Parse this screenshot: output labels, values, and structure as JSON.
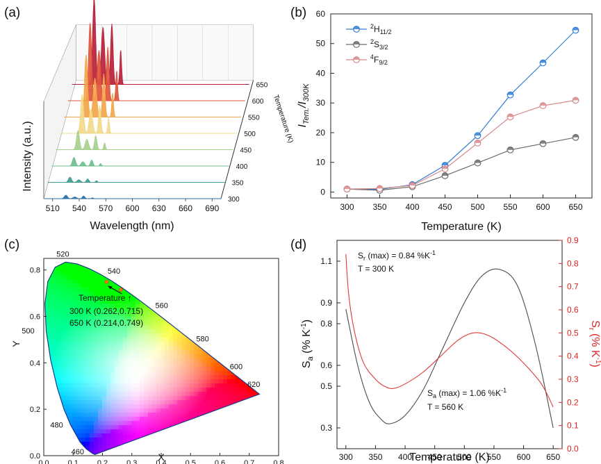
{
  "panels": {
    "a": {
      "label": "(a)"
    },
    "b": {
      "label": "(b)"
    },
    "c": {
      "label": "(c)"
    },
    "d": {
      "label": "(d)"
    }
  },
  "chart_data": [
    {
      "id": "a",
      "type": "area",
      "subtype": "3d-waterfall",
      "xlabel": "Wavelength (nm)",
      "ylabel": "Intensity (a.u.)",
      "zlabel": "Temperature (K)",
      "x_ticks": [
        "510",
        "540",
        "570",
        "600",
        "630",
        "660",
        "690"
      ],
      "z_ticks": [
        "300",
        "350",
        "400",
        "450",
        "500",
        "550",
        "600",
        "650"
      ],
      "xlim": [
        500,
        700
      ],
      "peaks_nm": [
        525,
        535,
        545,
        555
      ],
      "series": [
        {
          "name": "300",
          "color": "#2a6ea6",
          "peak_heights": [
            0.04,
            0.02,
            0.03,
            0.01
          ]
        },
        {
          "name": "350",
          "color": "#3d9c8f",
          "peak_heights": [
            0.06,
            0.03,
            0.04,
            0.02
          ]
        },
        {
          "name": "400",
          "color": "#6fbf8f",
          "peak_heights": [
            0.1,
            0.05,
            0.07,
            0.03
          ]
        },
        {
          "name": "450",
          "color": "#a8d08c",
          "peak_heights": [
            0.22,
            0.12,
            0.16,
            0.08
          ]
        },
        {
          "name": "500",
          "color": "#f2d98b",
          "peak_heights": [
            0.45,
            0.28,
            0.32,
            0.18
          ]
        },
        {
          "name": "550",
          "color": "#f3a54b",
          "peak_heights": [
            0.72,
            0.45,
            0.5,
            0.28
          ]
        },
        {
          "name": "600",
          "color": "#e0563a",
          "peak_heights": [
            0.9,
            0.58,
            0.62,
            0.35
          ]
        },
        {
          "name": "650",
          "color": "#b8203a",
          "peak_heights": [
            1.0,
            0.66,
            0.7,
            0.4
          ]
        }
      ]
    },
    {
      "id": "b",
      "type": "line",
      "xlabel": "Temperature (K)",
      "ylabel_main": "I",
      "ylabel_sub1": "Tem.",
      "ylabel_mid": "/I",
      "ylabel_sub2": "300K",
      "xlim": [
        275,
        675
      ],
      "ylim": [
        -2,
        60
      ],
      "x_ticks": [
        300,
        350,
        400,
        450,
        500,
        550,
        600,
        650
      ],
      "y_ticks": [
        0,
        10,
        20,
        30,
        40,
        50,
        60
      ],
      "x": [
        300,
        350,
        400,
        450,
        500,
        550,
        600,
        650
      ],
      "series": [
        {
          "name": "H11/2",
          "sup": "2",
          "base": "H",
          "sub": "11/2",
          "color": "#2f7fd6",
          "values": [
            1.0,
            0.9,
            2.5,
            9.0,
            19.0,
            32.7,
            43.5,
            54.5
          ]
        },
        {
          "name": "S3/2",
          "sup": "2",
          "base": "S",
          "sub": "3/2",
          "color": "#6b6b6b",
          "values": [
            1.0,
            0.6,
            1.8,
            5.5,
            9.8,
            14.2,
            16.3,
            18.4
          ]
        },
        {
          "name": "F9/2",
          "sup": "4",
          "base": "F",
          "sub": "9/2",
          "color": "#d98a8a",
          "values": [
            1.0,
            1.2,
            2.2,
            7.8,
            16.5,
            25.3,
            29.1,
            30.9
          ]
        }
      ]
    },
    {
      "id": "c",
      "type": "scatter",
      "subtype": "cie-1931-chromaticity",
      "xlabel": "X",
      "ylabel": "Y",
      "xlim": [
        0.0,
        0.8
      ],
      "ylim": [
        0.0,
        0.85
      ],
      "x_ticks": [
        "0.0",
        "0.1",
        "0.2",
        "0.3",
        "0.4",
        "0.5",
        "0.6",
        "0.7",
        "0.8"
      ],
      "y_ticks": [
        "0.0",
        "0.2",
        "0.4",
        "0.6",
        "0.8"
      ],
      "locus": [
        [
          0.1741,
          0.005
        ],
        [
          0.1666,
          0.0089
        ],
        [
          0.144,
          0.0297
        ],
        [
          0.1241,
          0.0578
        ],
        [
          0.0913,
          0.1327
        ],
        [
          0.0687,
          0.2007
        ],
        [
          0.0454,
          0.295
        ],
        [
          0.0235,
          0.4127
        ],
        [
          0.0082,
          0.5384
        ],
        [
          0.0039,
          0.6548
        ],
        [
          0.0139,
          0.7502
        ],
        [
          0.0389,
          0.812
        ],
        [
          0.0743,
          0.8338
        ],
        [
          0.1142,
          0.8262
        ],
        [
          0.1547,
          0.8059
        ],
        [
          0.1929,
          0.7816
        ],
        [
          0.2296,
          0.7543
        ],
        [
          0.2658,
          0.7243
        ],
        [
          0.3016,
          0.6923
        ],
        [
          0.3373,
          0.6589
        ],
        [
          0.3731,
          0.6245
        ],
        [
          0.4087,
          0.5896
        ],
        [
          0.4441,
          0.5547
        ],
        [
          0.4788,
          0.5202
        ],
        [
          0.5125,
          0.4866
        ],
        [
          0.5448,
          0.4544
        ],
        [
          0.5752,
          0.4242
        ],
        [
          0.6029,
          0.3965
        ],
        [
          0.627,
          0.3725
        ],
        [
          0.6482,
          0.3514
        ],
        [
          0.6658,
          0.334
        ],
        [
          0.6915,
          0.3083
        ],
        [
          0.7347,
          0.2653
        ]
      ],
      "wavelength_labels": [
        {
          "text": "460",
          "x": 0.144,
          "y": 0.0297
        },
        {
          "text": "480",
          "x": 0.0913,
          "y": 0.1327
        },
        {
          "text": "500",
          "x": 0.0082,
          "y": 0.5384
        },
        {
          "text": "520",
          "x": 0.0743,
          "y": 0.8338
        },
        {
          "text": "540",
          "x": 0.2296,
          "y": 0.7543
        },
        {
          "text": "560",
          "x": 0.3731,
          "y": 0.6245
        },
        {
          "text": "580",
          "x": 0.5125,
          "y": 0.4866
        },
        {
          "text": "600",
          "x": 0.627,
          "y": 0.3725
        },
        {
          "text": "620",
          "x": 0.6915,
          "y": 0.3083
        }
      ],
      "points": [
        {
          "temperature": "300 K",
          "x": 0.262,
          "y": 0.715
        },
        {
          "temperature": "650 K",
          "x": 0.214,
          "y": 0.749
        }
      ],
      "annotation_title": "Temperature ↑",
      "annotation_line1": "300 K (0.262,0.715)",
      "annotation_line2": "650 K (0.214,0.749)"
    },
    {
      "id": "d",
      "type": "line",
      "xlabel": "Temperature (K)",
      "ylabel_left_main": "S",
      "ylabel_left_sub": "a",
      "ylabel_left_tail": " (% K",
      "ylabel_left_sup": "-1",
      "ylabel_left_end": ")",
      "ylabel_right_main": "S",
      "ylabel_right_sub": "r",
      "ylabel_right_tail": " (% K",
      "ylabel_right_sup": "-1",
      "ylabel_right_end": ")",
      "xlim": [
        285,
        665
      ],
      "x_ticks": [
        300,
        350,
        400,
        450,
        500,
        550,
        600,
        650
      ],
      "left_ylim": [
        0.2,
        1.2
      ],
      "left_ticks": [
        "0.3",
        "0.5",
        "0.6",
        "0.8",
        "0.9",
        "1.1"
      ],
      "left_tick_values": [
        0.3,
        0.5,
        0.6,
        0.8,
        0.9,
        1.1
      ],
      "right_ylim": [
        0.0,
        0.9
      ],
      "right_ticks": [
        "0.0",
        "0.1",
        "0.2",
        "0.3",
        "0.4",
        "0.5",
        "0.6",
        "0.7",
        "0.8",
        "0.9"
      ],
      "right_tick_values": [
        0.0,
        0.1,
        0.2,
        0.3,
        0.4,
        0.5,
        0.6,
        0.7,
        0.8,
        0.9
      ],
      "series": [
        {
          "name": "Sa",
          "axis": "left",
          "color": "#4a4a4a",
          "x": [
            300,
            320,
            340,
            360,
            375,
            400,
            430,
            460,
            500,
            530,
            560,
            590,
            620,
            650
          ],
          "values": [
            0.87,
            0.6,
            0.42,
            0.34,
            0.32,
            0.36,
            0.48,
            0.66,
            0.9,
            1.03,
            1.06,
            0.98,
            0.7,
            0.3
          ]
        },
        {
          "name": "Sr",
          "axis": "right",
          "color": "#e03a3a",
          "x": [
            300,
            305,
            315,
            330,
            350,
            365,
            380,
            400,
            430,
            460,
            490,
            515,
            540,
            570,
            600,
            630,
            650
          ],
          "values": [
            0.84,
            0.66,
            0.5,
            0.37,
            0.3,
            0.27,
            0.26,
            0.28,
            0.33,
            0.4,
            0.47,
            0.5,
            0.49,
            0.44,
            0.37,
            0.28,
            0.18
          ]
        }
      ],
      "annotations": {
        "sr_line1_a": "S",
        "sr_line1_sub": "r",
        "sr_line1_b": " (max) = 0.84 %K",
        "sr_line1_sup": "-1",
        "sr_line2": "T = 300 K",
        "sa_line1_a": "S",
        "sa_line1_sub": "a",
        "sa_line1_b": " (max) = 1.06 %K",
        "sa_line1_sup": "-1",
        "sa_line2": "T = 560 K"
      }
    }
  ]
}
